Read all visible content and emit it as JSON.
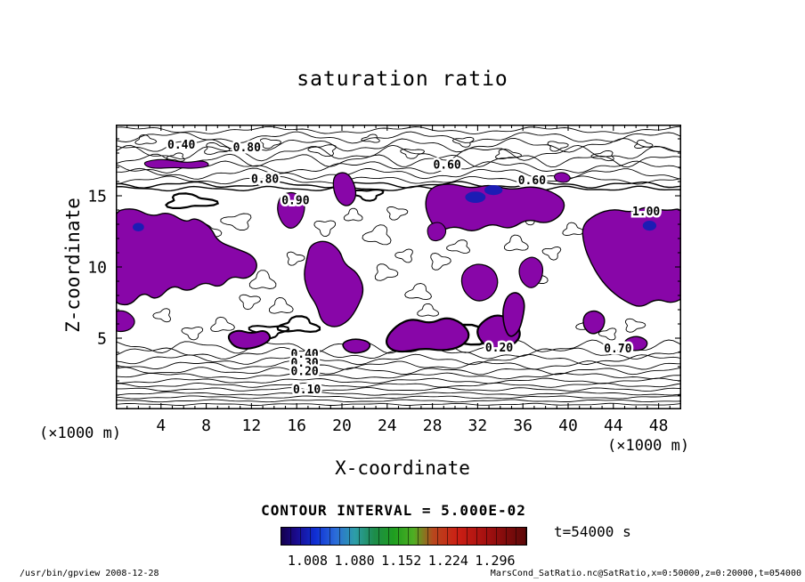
{
  "page": {
    "footer_left": "/usr/bin/gpview  2008-12-28",
    "footer_right": "MarsCond_SatRatio.nc@SatRatio,x=0:50000,z=0:20000,t=054000"
  },
  "chart_data": {
    "type": "heatmap",
    "subtype": "filled-contour",
    "title": "saturation ratio",
    "xlabel": "X-coordinate",
    "ylabel": "Z-coordinate",
    "x_unit": "(×1000 m)",
    "y_unit": "(×1000 m)",
    "xlim": [
      0,
      50
    ],
    "ylim": [
      0,
      20
    ],
    "xticks": [
      4,
      8,
      12,
      16,
      20,
      24,
      28,
      32,
      36,
      40,
      44,
      48
    ],
    "yticks": [
      5,
      10,
      15
    ],
    "grid": false,
    "contour_interval": 0.05,
    "contour_interval_text": "CONTOUR INTERVAL = 5.000E-02",
    "time_label": "t=54000 s",
    "fill_color": "#8806a8",
    "blue_color": "#1c1cb4",
    "colorbar": {
      "labels": [
        "1.008",
        "1.080",
        "1.152",
        "1.224",
        "1.296"
      ],
      "label_pos": [
        11,
        30,
        49,
        68,
        87
      ],
      "stops": [
        {
          "p": 0,
          "c": "#14004d"
        },
        {
          "p": 6,
          "c": "#1a0a8c"
        },
        {
          "p": 14,
          "c": "#0f2fd4"
        },
        {
          "p": 22,
          "c": "#2b6bd9"
        },
        {
          "p": 30,
          "c": "#2d9ea8"
        },
        {
          "p": 38,
          "c": "#1d8c4a"
        },
        {
          "p": 46,
          "c": "#1f9e1f"
        },
        {
          "p": 54,
          "c": "#4fae23"
        },
        {
          "p": 62,
          "c": "#b8471d"
        },
        {
          "p": 72,
          "c": "#cc1f14"
        },
        {
          "p": 84,
          "c": "#a31010"
        },
        {
          "p": 100,
          "c": "#5c0808"
        }
      ]
    },
    "contour_labels": [
      {
        "t": "0.40",
        "x": 5.8,
        "z": 18.6
      },
      {
        "t": "0.80",
        "x": 11.6,
        "z": 18.4
      },
      {
        "t": "0.80",
        "x": 13.2,
        "z": 16.2
      },
      {
        "t": "0.60",
        "x": 29.3,
        "z": 17.2
      },
      {
        "t": "0.60",
        "x": 36.8,
        "z": 16.1
      },
      {
        "t": "1.00",
        "x": 46.9,
        "z": 13.9
      },
      {
        "t": "0.90",
        "x": 15.9,
        "z": 14.7
      },
      {
        "t": "0.40",
        "x": 16.7,
        "z": 3.9
      },
      {
        "t": "0.30",
        "x": 16.7,
        "z": 3.3
      },
      {
        "t": "0.20",
        "x": 16.7,
        "z": 2.7
      },
      {
        "t": "0.10",
        "x": 16.9,
        "z": 1.4
      },
      {
        "t": "0.20",
        "x": 33.9,
        "z": 4.35
      },
      {
        "t": "0.70",
        "x": 44.4,
        "z": 4.3
      }
    ],
    "hlines": [
      [
        0.35,
        0.05
      ],
      [
        0.6,
        0.06
      ],
      [
        0.85,
        0.07
      ],
      [
        1.1,
        0.08
      ],
      [
        1.4,
        0.09
      ],
      [
        1.7,
        0.11
      ],
      [
        2.0,
        0.13
      ],
      [
        2.35,
        0.15
      ],
      [
        2.7,
        0.18
      ],
      [
        3.1,
        0.21
      ],
      [
        3.5,
        0.25
      ],
      [
        3.95,
        0.29
      ],
      [
        4.4,
        0.33
      ]
    ],
    "toplines": [
      [
        15.5,
        0.12
      ],
      [
        15.78,
        0.16
      ],
      [
        16.1,
        0.2
      ],
      [
        16.55,
        0.27
      ],
      [
        17.0,
        0.3
      ],
      [
        17.5,
        0.34
      ],
      [
        18.0,
        0.38
      ],
      [
        18.55,
        0.34
      ],
      [
        19.1,
        0.28
      ],
      [
        19.6,
        0.18
      ]
    ],
    "loops": [
      [
        2.2,
        10.8,
        1.1,
        0.5
      ],
      [
        4.0,
        11.8,
        0.8,
        0.4
      ],
      [
        6.5,
        10.2,
        1.3,
        0.6
      ],
      [
        8.2,
        12.4,
        0.9,
        0.5
      ],
      [
        10.8,
        13.2,
        1.2,
        0.5
      ],
      [
        13.0,
        9.0,
        1.0,
        0.6
      ],
      [
        14.6,
        7.2,
        0.9,
        0.5
      ],
      [
        15.8,
        10.6,
        0.7,
        0.4
      ],
      [
        18.5,
        12.8,
        0.8,
        0.5
      ],
      [
        21.0,
        13.6,
        0.7,
        0.4
      ],
      [
        23.2,
        12.2,
        1.1,
        0.6
      ],
      [
        24.8,
        13.8,
        0.8,
        0.4
      ],
      [
        23.8,
        9.6,
        0.9,
        0.5
      ],
      [
        25.6,
        10.8,
        0.7,
        0.4
      ],
      [
        26.8,
        8.2,
        1.0,
        0.5
      ],
      [
        28.6,
        10.4,
        0.8,
        0.5
      ],
      [
        30.4,
        11.4,
        0.9,
        0.4
      ],
      [
        27.6,
        6.9,
        0.8,
        0.4
      ],
      [
        31.8,
        8.6,
        0.7,
        0.4
      ],
      [
        35.4,
        11.6,
        0.9,
        0.5
      ],
      [
        37.2,
        9.2,
        0.8,
        0.5
      ],
      [
        38.6,
        11.0,
        0.7,
        0.4
      ],
      [
        40.4,
        12.6,
        0.8,
        0.4
      ],
      [
        41.8,
        5.9,
        0.9,
        0.4
      ],
      [
        43.6,
        5.3,
        0.7,
        0.35
      ],
      [
        45.8,
        5.9,
        0.8,
        0.4
      ],
      [
        9.4,
        5.9,
        0.9,
        0.45
      ],
      [
        6.8,
        5.4,
        0.8,
        0.4
      ],
      [
        4.2,
        6.6,
        0.7,
        0.4
      ],
      [
        11.8,
        7.6,
        0.8,
        0.45
      ],
      [
        36.6,
        13.4,
        0.7,
        0.35
      ],
      [
        42.6,
        12.2,
        0.6,
        0.35
      ],
      [
        8.8,
        18.3,
        1.0,
        0.35
      ],
      [
        13.6,
        18.7,
        0.8,
        0.3
      ],
      [
        18.4,
        18.2,
        1.1,
        0.35
      ],
      [
        22.6,
        19.0,
        0.7,
        0.25
      ],
      [
        26.2,
        18.0,
        0.9,
        0.3
      ],
      [
        30.8,
        18.8,
        0.8,
        0.3
      ],
      [
        34.6,
        17.9,
        1.0,
        0.3
      ],
      [
        39.0,
        18.5,
        0.8,
        0.3
      ],
      [
        43.2,
        17.8,
        0.9,
        0.3
      ],
      [
        46.6,
        18.6,
        0.7,
        0.25
      ],
      [
        2.6,
        18.9,
        0.8,
        0.3
      ],
      [
        5.4,
        17.7,
        0.7,
        0.25
      ],
      [
        16.2,
        5.9,
        1.6,
        0.5,
        2.2
      ],
      [
        6.5,
        14.6,
        2.0,
        0.45,
        2.2
      ],
      [
        22.3,
        15.1,
        1.2,
        0.35,
        2.0
      ],
      [
        30.4,
        5.2,
        2.4,
        0.6,
        2.4
      ],
      [
        13.5,
        5.5,
        1.5,
        0.4,
        2.0
      ]
    ],
    "blue_spots": [
      [
        33.4,
        15.4,
        0.8,
        0.35
      ],
      [
        31.8,
        14.9,
        0.9,
        0.4
      ],
      [
        47.2,
        12.9,
        0.6,
        0.35
      ],
      [
        2.0,
        12.8,
        0.5,
        0.3
      ]
    ],
    "blobs": [
      {
        "w": 1.4,
        "p": [
          [
            -0.5,
            13.8
          ],
          [
            1.5,
            14.2
          ],
          [
            3.2,
            13.5
          ],
          [
            4.6,
            13.9
          ],
          [
            6.2,
            13.1
          ],
          [
            7.0,
            13.5
          ],
          [
            8.4,
            12.8
          ],
          [
            9.0,
            11.8
          ],
          [
            10.6,
            11.3
          ],
          [
            12.2,
            10.8
          ],
          [
            12.6,
            9.9
          ],
          [
            11.6,
            9.1
          ],
          [
            10.2,
            9.4
          ],
          [
            9.2,
            8.5
          ],
          [
            7.8,
            9.0
          ],
          [
            6.4,
            8.2
          ],
          [
            5.0,
            8.8
          ],
          [
            3.6,
            7.6
          ],
          [
            2.4,
            8.3
          ],
          [
            1.2,
            7.2
          ],
          [
            -0.5,
            7.6
          ]
        ]
      },
      {
        "w": 1.2,
        "p": [
          [
            -0.5,
            6.8
          ],
          [
            0.8,
            7.0
          ],
          [
            1.8,
            6.3
          ],
          [
            1.4,
            5.6
          ],
          [
            0.2,
            5.4
          ],
          [
            -0.5,
            5.8
          ]
        ]
      },
      {
        "w": 2.0,
        "p": [
          [
            9.8,
            5.2
          ],
          [
            10.8,
            5.6
          ],
          [
            12.0,
            5.3
          ],
          [
            13.2,
            5.6
          ],
          [
            13.8,
            5.0
          ],
          [
            13.0,
            4.5
          ],
          [
            11.6,
            4.2
          ],
          [
            10.4,
            4.4
          ]
        ]
      },
      {
        "w": 1.4,
        "p": [
          [
            17.2,
            11.6
          ],
          [
            18.6,
            11.9
          ],
          [
            19.8,
            11.2
          ],
          [
            20.2,
            10.2
          ],
          [
            21.4,
            9.6
          ],
          [
            22.0,
            8.4
          ],
          [
            21.4,
            7.2
          ],
          [
            20.6,
            6.2
          ],
          [
            19.4,
            5.7
          ],
          [
            18.2,
            6.1
          ],
          [
            17.8,
            7.3
          ],
          [
            17.0,
            8.2
          ],
          [
            16.6,
            9.4
          ],
          [
            16.9,
            10.6
          ]
        ]
      },
      {
        "w": 1.2,
        "p": [
          [
            14.6,
            15.1
          ],
          [
            15.9,
            15.3
          ],
          [
            16.8,
            14.5
          ],
          [
            16.5,
            13.3
          ],
          [
            15.6,
            12.6
          ],
          [
            14.7,
            13.0
          ],
          [
            14.2,
            14.1
          ]
        ]
      },
      {
        "w": 1.4,
        "p": [
          [
            27.8,
            15.6
          ],
          [
            29.5,
            15.9
          ],
          [
            31.5,
            15.5
          ],
          [
            33.0,
            15.8
          ],
          [
            35.0,
            15.4
          ],
          [
            36.8,
            15.7
          ],
          [
            38.6,
            15.3
          ],
          [
            39.8,
            14.6
          ],
          [
            39.4,
            13.6
          ],
          [
            38.0,
            13.0
          ],
          [
            36.4,
            13.4
          ],
          [
            34.8,
            12.6
          ],
          [
            33.2,
            13.1
          ],
          [
            31.6,
            12.4
          ],
          [
            30.0,
            12.9
          ],
          [
            28.6,
            12.5
          ],
          [
            27.7,
            13.3
          ],
          [
            27.3,
            14.5
          ]
        ]
      },
      {
        "w": 2.2,
        "p": [
          [
            23.8,
            4.9
          ],
          [
            24.8,
            5.9
          ],
          [
            26.2,
            6.4
          ],
          [
            27.8,
            6.0
          ],
          [
            29.2,
            6.5
          ],
          [
            30.6,
            6.1
          ],
          [
            31.4,
            5.2
          ],
          [
            30.6,
            4.4
          ],
          [
            29.0,
            4.1
          ],
          [
            27.2,
            4.3
          ],
          [
            25.4,
            4.0
          ],
          [
            24.2,
            4.2
          ]
        ]
      },
      {
        "w": 2.2,
        "p": [
          [
            31.8,
            5.5
          ],
          [
            32.6,
            6.3
          ],
          [
            33.8,
            6.7
          ],
          [
            35.2,
            6.2
          ],
          [
            35.9,
            5.3
          ],
          [
            35.2,
            4.5
          ],
          [
            33.8,
            4.2
          ],
          [
            32.5,
            4.5
          ]
        ]
      },
      {
        "w": 1.3,
        "p": [
          [
            30.8,
            9.8
          ],
          [
            32.0,
            10.3
          ],
          [
            33.4,
            9.9
          ],
          [
            33.9,
            8.9
          ],
          [
            33.3,
            7.9
          ],
          [
            32.0,
            7.5
          ],
          [
            30.9,
            8.1
          ],
          [
            30.5,
            9.0
          ]
        ]
      },
      {
        "w": 1.2,
        "p": [
          [
            35.9,
            10.4
          ],
          [
            36.9,
            10.8
          ],
          [
            37.8,
            10.2
          ],
          [
            37.7,
            9.1
          ],
          [
            36.8,
            8.4
          ],
          [
            35.9,
            8.9
          ],
          [
            35.6,
            9.7
          ]
        ]
      },
      {
        "w": 1.4,
        "p": [
          [
            41.2,
            12.9
          ],
          [
            42.4,
            13.7
          ],
          [
            44.0,
            14.1
          ],
          [
            45.6,
            13.8
          ],
          [
            47.0,
            14.3
          ],
          [
            48.6,
            13.9
          ],
          [
            50.5,
            14.2
          ],
          [
            50.5,
            8.0
          ],
          [
            49.2,
            7.4
          ],
          [
            47.8,
            7.8
          ],
          [
            46.4,
            7.1
          ],
          [
            45.0,
            7.6
          ],
          [
            43.8,
            8.3
          ],
          [
            42.8,
            9.2
          ],
          [
            42.0,
            10.3
          ],
          [
            41.4,
            11.5
          ]
        ]
      },
      {
        "w": 1.1,
        "p": [
          [
            2.5,
            17.4
          ],
          [
            4.2,
            17.6
          ],
          [
            6.2,
            17.3
          ],
          [
            7.8,
            17.5
          ],
          [
            8.4,
            17.1
          ],
          [
            7.0,
            16.9
          ],
          [
            5.2,
            17.0
          ],
          [
            3.4,
            16.9
          ],
          [
            2.6,
            17.1
          ]
        ]
      },
      {
        "w": 1.3,
        "p": [
          [
            19.3,
            16.5
          ],
          [
            20.4,
            16.7
          ],
          [
            21.1,
            15.9
          ],
          [
            21.3,
            14.9
          ],
          [
            20.6,
            14.2
          ],
          [
            19.7,
            14.5
          ],
          [
            19.2,
            15.5
          ]
        ]
      },
      {
        "w": 1.6,
        "p": [
          [
            20.0,
            4.7
          ],
          [
            21.2,
            5.0
          ],
          [
            22.6,
            4.7
          ],
          [
            22.3,
            4.1
          ],
          [
            21.0,
            3.9
          ],
          [
            20.2,
            4.2
          ]
        ]
      },
      {
        "w": 1.4,
        "p": [
          [
            41.4,
            6.7
          ],
          [
            42.4,
            7.0
          ],
          [
            43.3,
            6.5
          ],
          [
            43.1,
            5.6
          ],
          [
            42.1,
            5.2
          ],
          [
            41.3,
            5.8
          ]
        ]
      },
      {
        "w": 1.3,
        "p": [
          [
            45.0,
            4.9
          ],
          [
            46.1,
            5.2
          ],
          [
            47.1,
            4.8
          ],
          [
            46.8,
            4.2
          ],
          [
            45.6,
            4.1
          ],
          [
            45.0,
            4.4
          ]
        ]
      },
      {
        "w": 1.0,
        "p": [
          [
            38.7,
            16.5
          ],
          [
            39.6,
            16.7
          ],
          [
            40.3,
            16.3
          ],
          [
            39.9,
            15.9
          ],
          [
            38.9,
            16.0
          ]
        ]
      },
      {
        "w": 1.1,
        "p": [
          [
            27.7,
            13.0
          ],
          [
            28.7,
            13.2
          ],
          [
            29.3,
            12.6
          ],
          [
            28.9,
            11.9
          ],
          [
            27.9,
            11.8
          ],
          [
            27.5,
            12.4
          ]
        ]
      },
      {
        "w": 1.6,
        "p": [
          [
            34.6,
            8.0
          ],
          [
            35.5,
            8.3
          ],
          [
            36.2,
            7.6
          ],
          [
            36.0,
            6.4
          ],
          [
            35.6,
            5.4
          ],
          [
            34.8,
            5.0
          ],
          [
            34.3,
            5.9
          ],
          [
            34.2,
            7.0
          ]
        ]
      }
    ]
  }
}
